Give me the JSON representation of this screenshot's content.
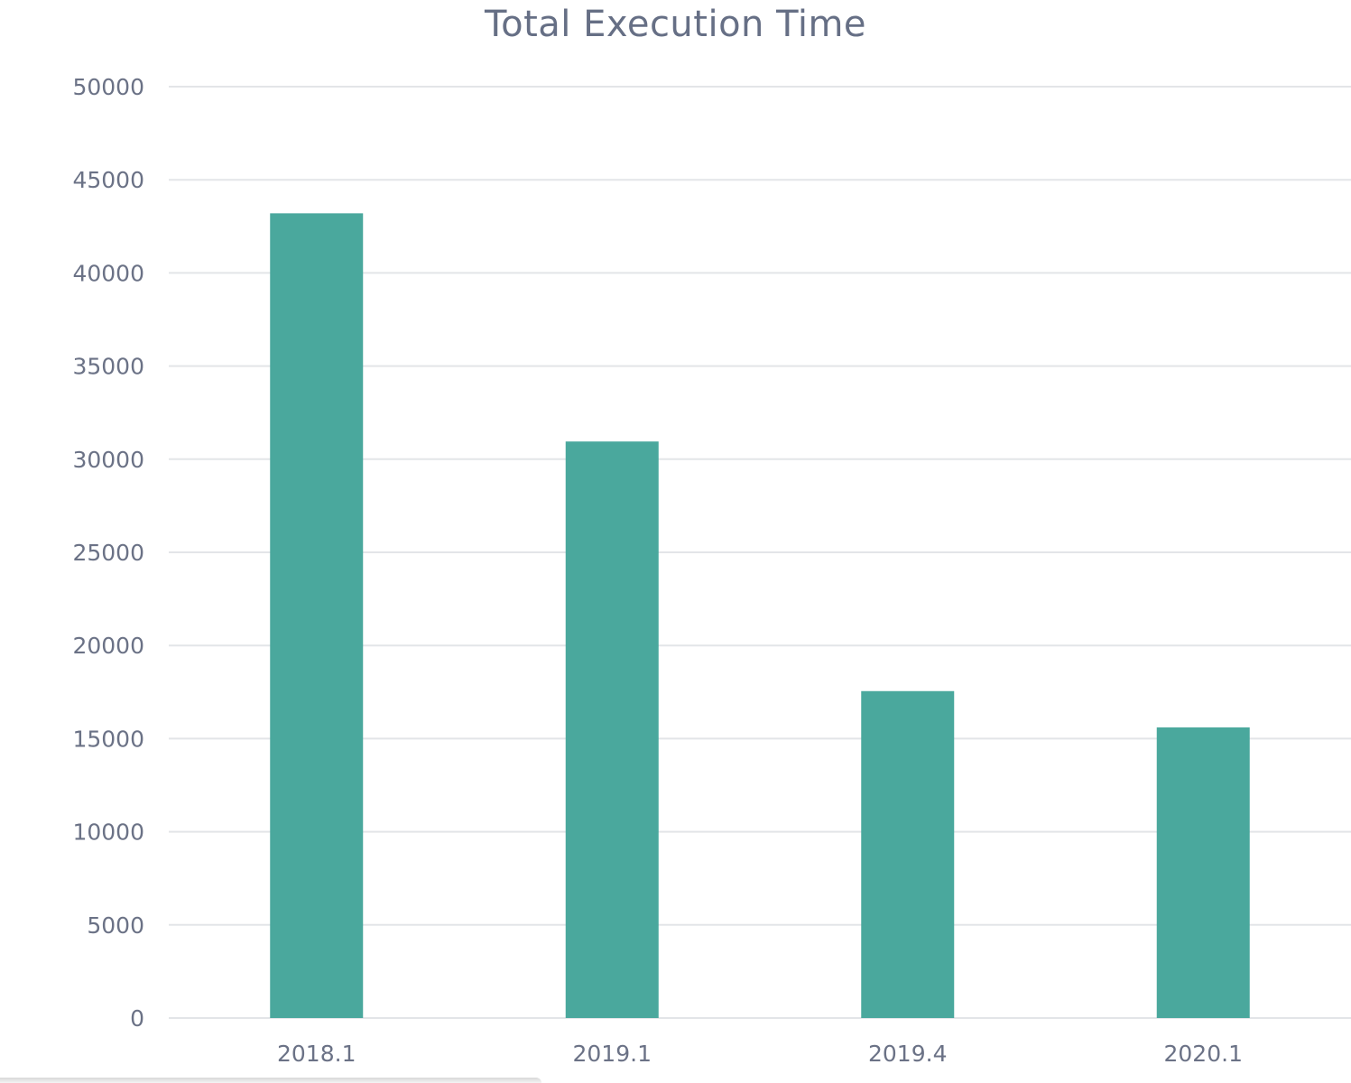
{
  "chart_data": {
    "type": "bar",
    "title": "Total Execution Time",
    "xlabel": "",
    "ylabel": "",
    "categories": [
      "2018.1",
      "2019.1",
      "2019.4",
      "2020.1"
    ],
    "values": [
      43200,
      30950,
      17550,
      15600
    ],
    "ylim": [
      0,
      50000
    ],
    "yticks": [
      "0",
      "5000",
      "10000",
      "15000",
      "20000",
      "25000",
      "30000",
      "35000",
      "40000",
      "45000",
      "50000"
    ],
    "grid": true,
    "legend": "none",
    "bar_color": "#4aa89d"
  }
}
